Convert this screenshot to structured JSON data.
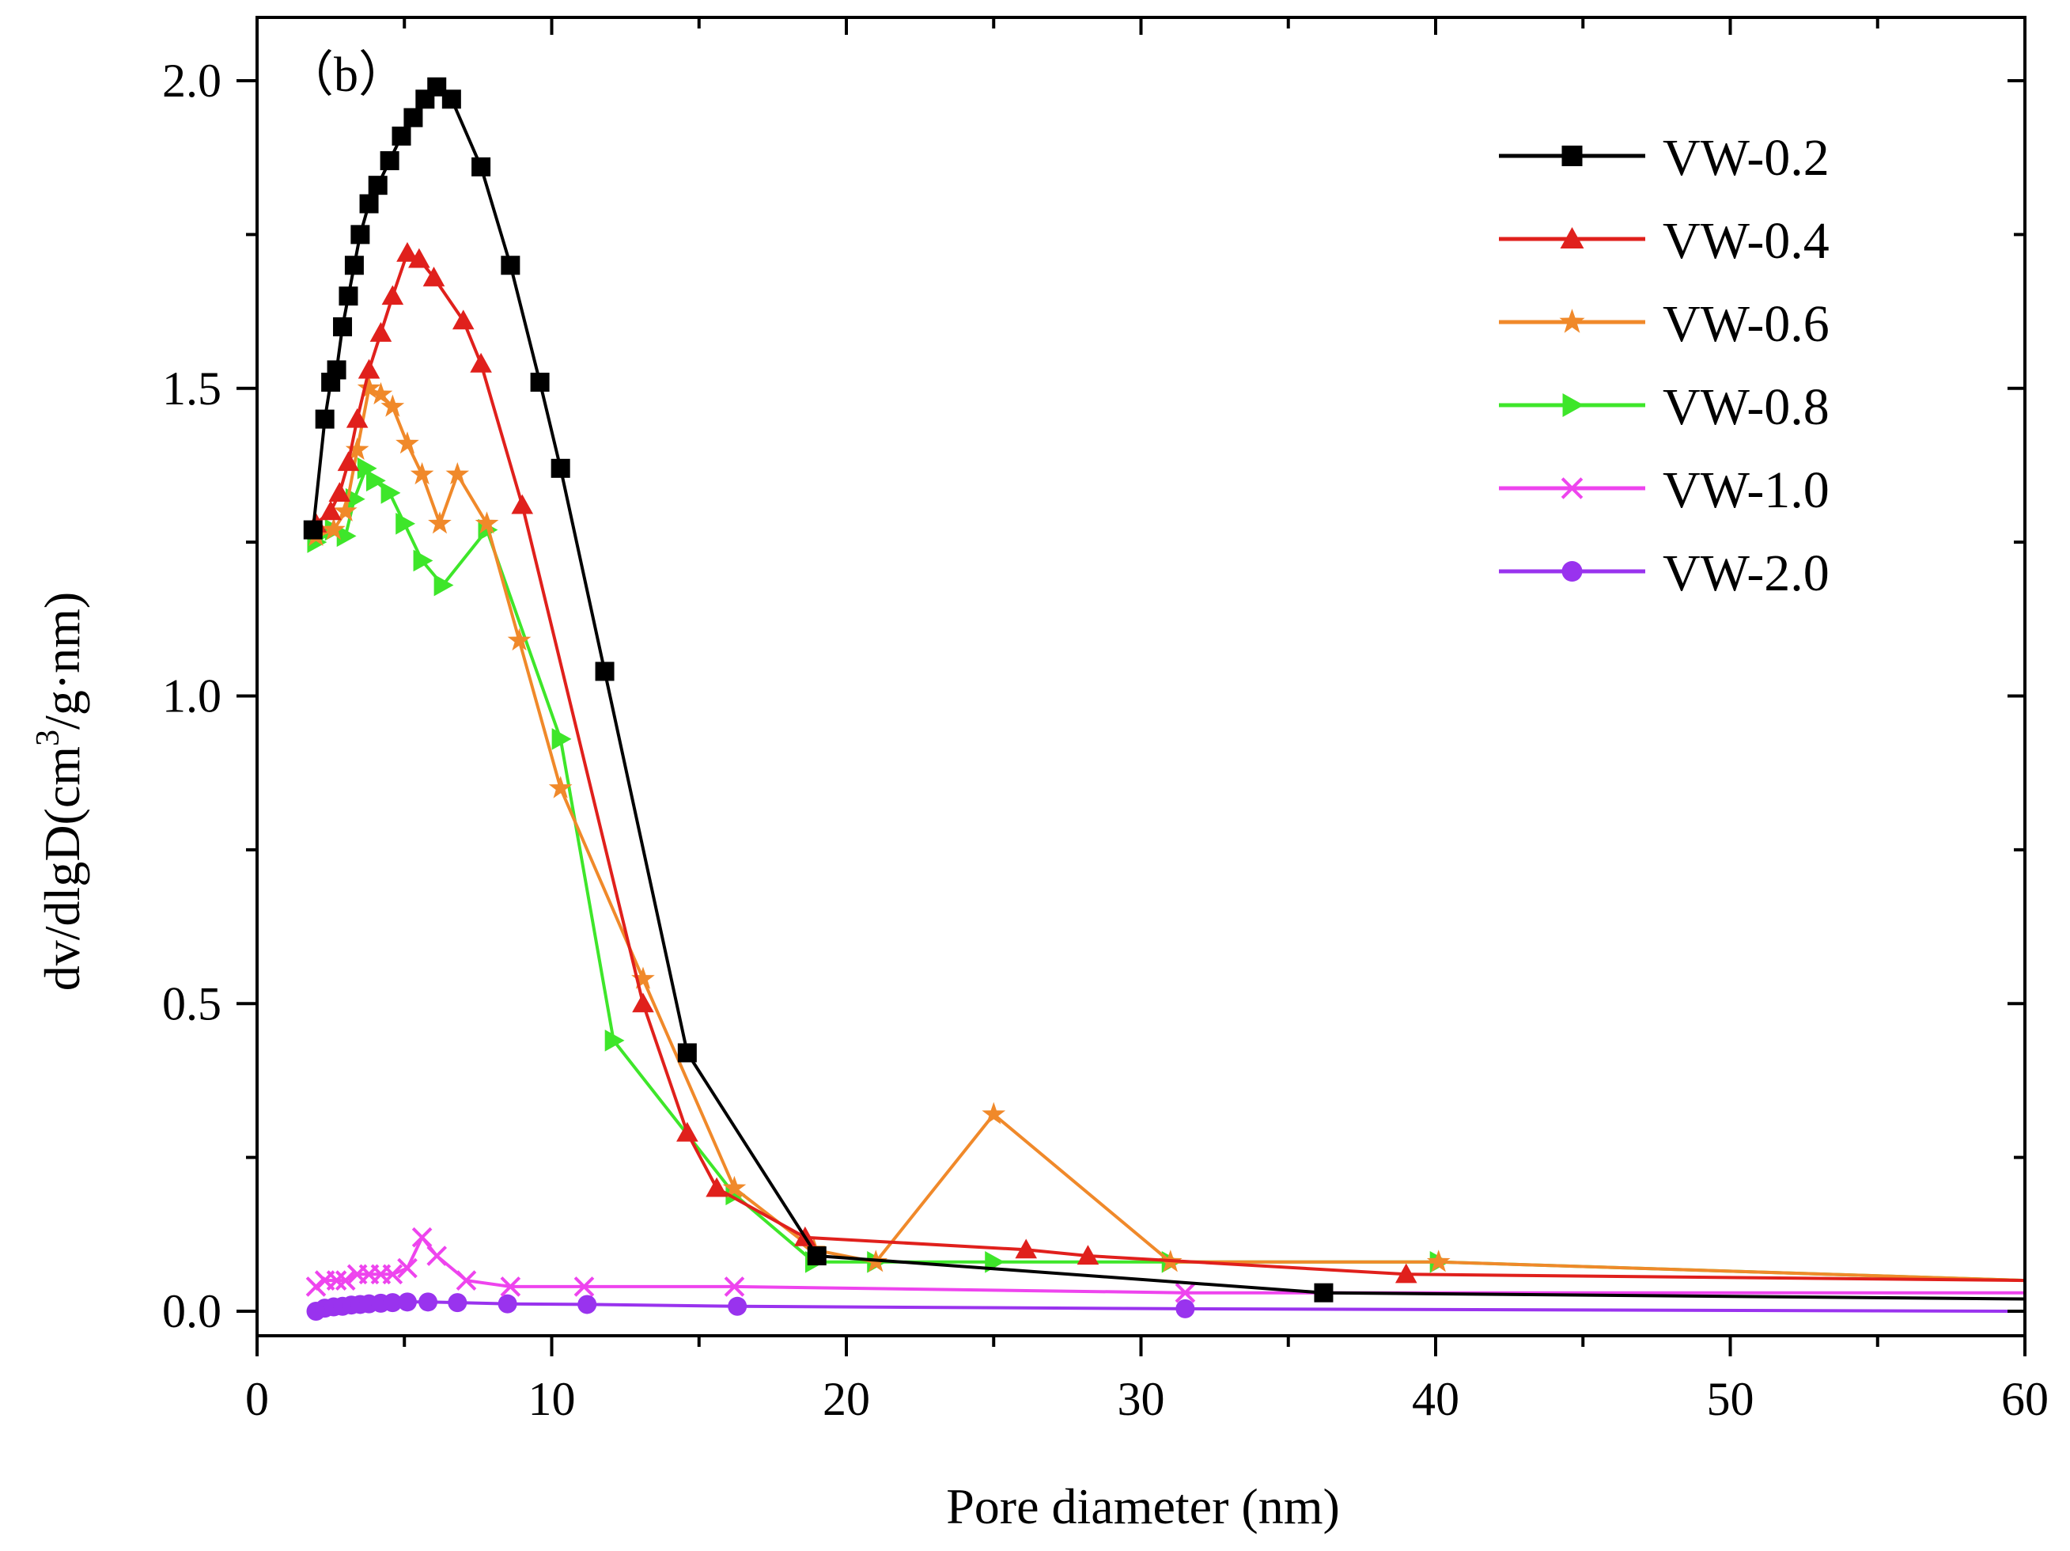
{
  "chart_data": {
    "type": "line",
    "panel_label": "（b）",
    "title": "",
    "xlabel": "Pore diameter (nm)",
    "ylabel": "dv/dlgD(cm",
    "ylabel_sup": "3",
    "ylabel_tail": "/g·nm)",
    "xlim": [
      0,
      60
    ],
    "ylim": [
      -0.04,
      2.1
    ],
    "x_ticks": [
      0,
      10,
      20,
      30,
      40,
      50,
      60
    ],
    "x_tick_labels": [
      "0",
      "10",
      "20",
      "30",
      "40",
      "50",
      "60"
    ],
    "y_ticks": [
      0.0,
      0.5,
      1.0,
      1.5,
      2.0
    ],
    "y_tick_labels": [
      "0.0",
      "0.5",
      "1.0",
      "1.5",
      "2.0"
    ],
    "legend_position": "top-right",
    "grid": false,
    "series": [
      {
        "name": "VW-0.2",
        "color": "#000000",
        "marker": "square",
        "x": [
          1.9,
          2.3,
          2.5,
          2.7,
          2.9,
          3.1,
          3.3,
          3.5,
          3.8,
          4.1,
          4.5,
          4.9,
          5.3,
          5.7,
          6.1,
          6.6,
          7.6,
          8.6,
          9.6,
          10.3,
          11.8,
          14.6,
          19.0,
          36.2,
          60
        ],
        "y": [
          1.27,
          1.45,
          1.51,
          1.53,
          1.6,
          1.65,
          1.7,
          1.75,
          1.8,
          1.83,
          1.87,
          1.91,
          1.94,
          1.97,
          1.99,
          1.97,
          1.86,
          1.7,
          1.51,
          1.37,
          1.04,
          0.42,
          0.09,
          0.03,
          0.02
        ]
      },
      {
        "name": "VW-0.4",
        "color": "#e0201c",
        "marker": "triangle",
        "x": [
          2.0,
          2.5,
          2.8,
          3.1,
          3.4,
          3.8,
          4.2,
          4.6,
          5.1,
          5.5,
          6.0,
          7.0,
          7.6,
          9.0,
          13.1,
          14.6,
          15.6,
          18.6,
          26.1,
          28.2,
          39.0,
          60
        ],
        "y": [
          1.28,
          1.3,
          1.33,
          1.38,
          1.45,
          1.53,
          1.59,
          1.65,
          1.72,
          1.71,
          1.68,
          1.61,
          1.54,
          1.31,
          0.5,
          0.29,
          0.2,
          0.12,
          0.1,
          0.09,
          0.06,
          0.05
        ]
      },
      {
        "name": "VW-0.6",
        "color": "#f0892a",
        "marker": "star",
        "x": [
          2.0,
          2.6,
          3.0,
          3.4,
          3.8,
          4.2,
          4.6,
          5.1,
          5.6,
          6.2,
          6.8,
          7.8,
          8.9,
          10.3,
          13.1,
          16.2,
          18.9,
          21.0,
          25.0,
          31.0,
          40.1,
          60
        ],
        "y": [
          1.26,
          1.27,
          1.3,
          1.4,
          1.5,
          1.49,
          1.47,
          1.41,
          1.36,
          1.28,
          1.36,
          1.28,
          1.09,
          0.85,
          0.54,
          0.2,
          0.1,
          0.08,
          0.32,
          0.08,
          0.08,
          0.05
        ]
      },
      {
        "name": "VW-0.8",
        "color": "#3ee62a",
        "marker": "triangle-right",
        "x": [
          2.0,
          2.6,
          3.0,
          3.3,
          3.7,
          4.0,
          4.5,
          5.0,
          5.6,
          6.3,
          7.8,
          10.3,
          12.1,
          16.2,
          18.9,
          21.0,
          25.0,
          31.0,
          40.1,
          60
        ],
        "y": [
          1.25,
          1.27,
          1.26,
          1.32,
          1.37,
          1.35,
          1.33,
          1.28,
          1.22,
          1.18,
          1.27,
          0.93,
          0.44,
          0.19,
          0.08,
          0.08,
          0.08,
          0.08,
          0.08,
          0.05
        ]
      },
      {
        "name": "VW-1.0",
        "color": "#ee44ee",
        "marker": "x",
        "x": [
          2.0,
          2.3,
          2.7,
          3.0,
          3.4,
          3.8,
          4.2,
          4.6,
          5.1,
          5.6,
          6.1,
          7.1,
          8.6,
          11.1,
          16.2,
          31.5,
          60
        ],
        "y": [
          0.04,
          0.05,
          0.05,
          0.05,
          0.06,
          0.06,
          0.06,
          0.06,
          0.07,
          0.12,
          0.09,
          0.05,
          0.04,
          0.04,
          0.04,
          0.03,
          0.03
        ]
      },
      {
        "name": "VW-2.0",
        "color": "#9933ee",
        "marker": "circle",
        "x": [
          2.0,
          2.3,
          2.6,
          2.9,
          3.2,
          3.5,
          3.8,
          4.2,
          4.6,
          5.1,
          5.8,
          6.8,
          8.5,
          11.2,
          16.3,
          31.5,
          60
        ],
        "y": [
          0.0,
          0.005,
          0.007,
          0.008,
          0.01,
          0.011,
          0.012,
          0.013,
          0.014,
          0.015,
          0.015,
          0.014,
          0.012,
          0.011,
          0.008,
          0.004,
          0.0
        ]
      }
    ]
  }
}
